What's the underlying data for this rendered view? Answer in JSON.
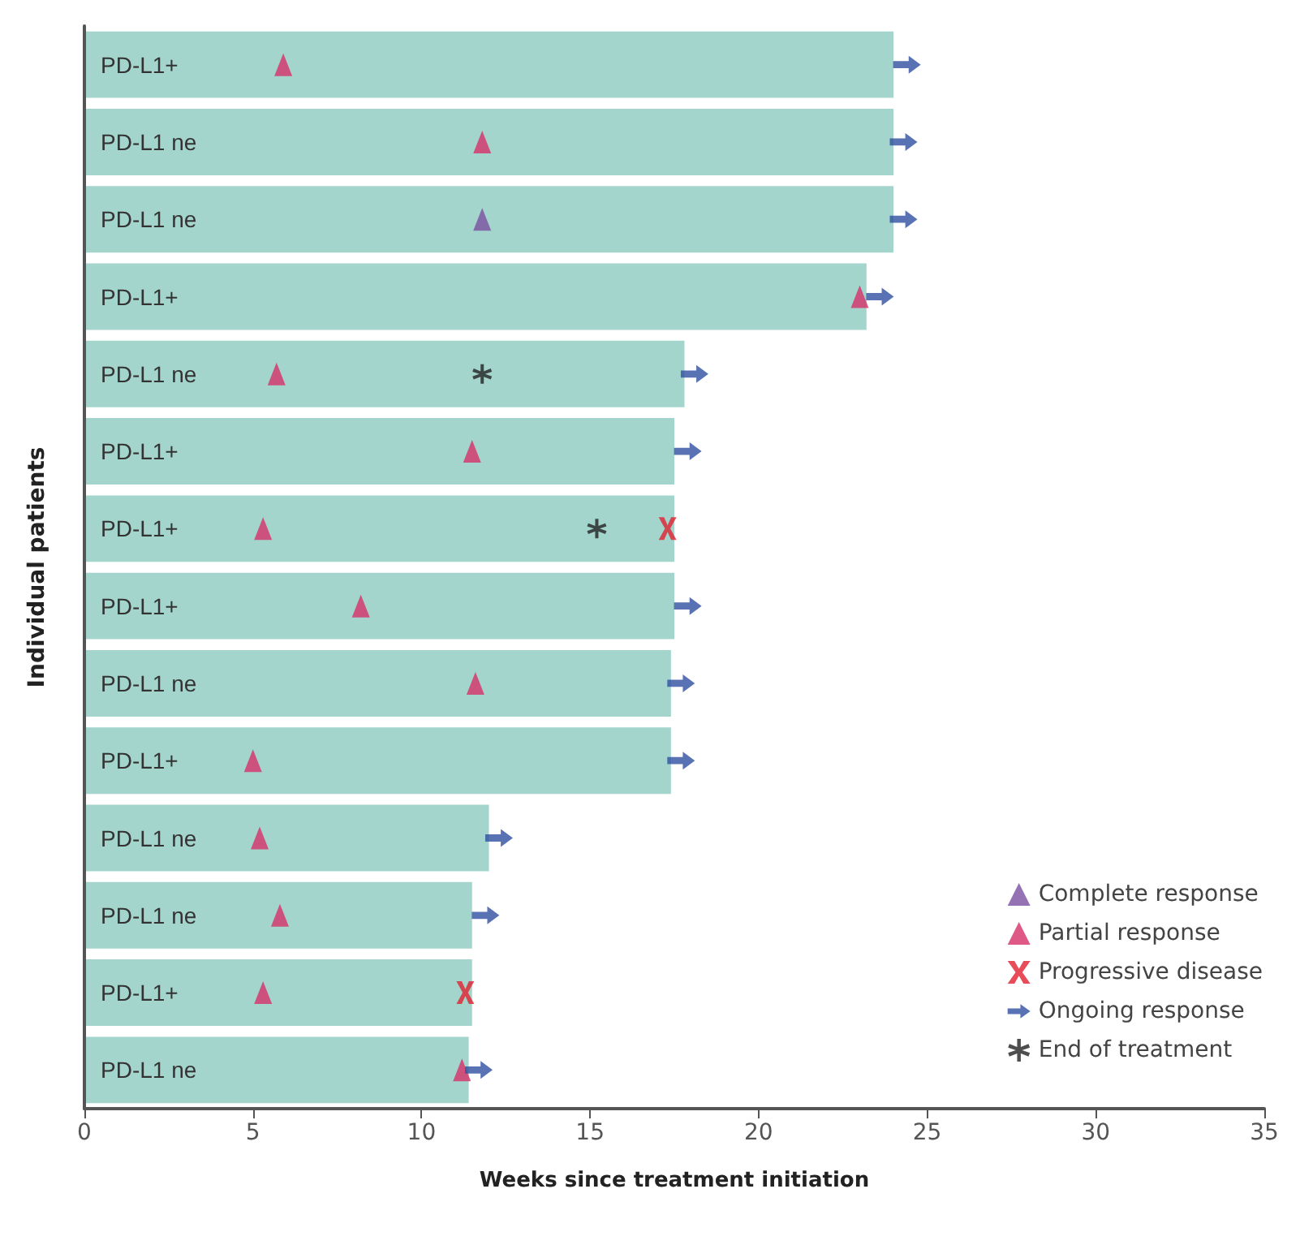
{
  "chart_data": {
    "type": "bar",
    "orientation": "horizontal",
    "xlabel": "Weeks since treatment initiation",
    "ylabel": "Individual patients",
    "categories": [
      "PD-L1+",
      "PD-L1 ne",
      "PD-L1 ne",
      "PD-L1+",
      "PD-L1 ne",
      "PD-L1+",
      "PD-L1+",
      "PD-L1+",
      "PD-L1 ne",
      "PD-L1+",
      "PD-L1 ne",
      "PD-L1 ne",
      "PD-L1+",
      "PD-L1 ne"
    ],
    "series": [
      {
        "color": "#a3d5cd",
        "values": [
          24.0,
          24.0,
          24.0,
          23.2,
          17.8,
          17.5,
          17.5,
          17.5,
          17.4,
          17.4,
          12.0,
          11.5,
          11.5,
          11.4
        ]
      },
      {
        "type": "scatter",
        "name": "Complete response",
        "color": "#7b4fa0",
        "marker": "triangle",
        "values": [
          null,
          null,
          11.8,
          null,
          null,
          null,
          null,
          null,
          null,
          null,
          null,
          null,
          null,
          null
        ]
      },
      {
        "type": "scatter",
        "name": "Partial response",
        "color": "#d63068",
        "marker": "triangle",
        "values": [
          5.9,
          11.8,
          null,
          23.0,
          5.7,
          11.5,
          5.3,
          8.2,
          11.6,
          5.0,
          5.2,
          5.8,
          5.3,
          11.2
        ]
      },
      {
        "type": "scatter",
        "name": "Progressive disease",
        "color": "#e02030",
        "marker": "cross",
        "values": [
          null,
          null,
          null,
          null,
          null,
          null,
          17.3,
          null,
          null,
          null,
          null,
          null,
          11.3,
          null
        ]
      },
      {
        "type": "scatter",
        "name": "Ongoing response",
        "color": "#2f4fa0",
        "values": [
          24.4,
          24.3,
          24.3,
          23.6,
          18.1,
          17.9,
          null,
          17.9,
          17.7,
          17.7,
          12.3,
          11.9,
          null,
          11.7
        ]
      },
      {
        "type": "scatter",
        "name": "End of treatment",
        "color": "#222222",
        "marker": "star",
        "values": [
          null,
          null,
          null,
          null,
          11.8,
          null,
          15.2,
          null,
          null,
          null,
          null,
          null,
          null,
          null
        ]
      }
    ],
    "xlim": [
      0,
      35
    ],
    "xticks": [
      0,
      5,
      10,
      15,
      20,
      25,
      30,
      35
    ],
    "grid": false,
    "legend": "bottom right"
  }
}
